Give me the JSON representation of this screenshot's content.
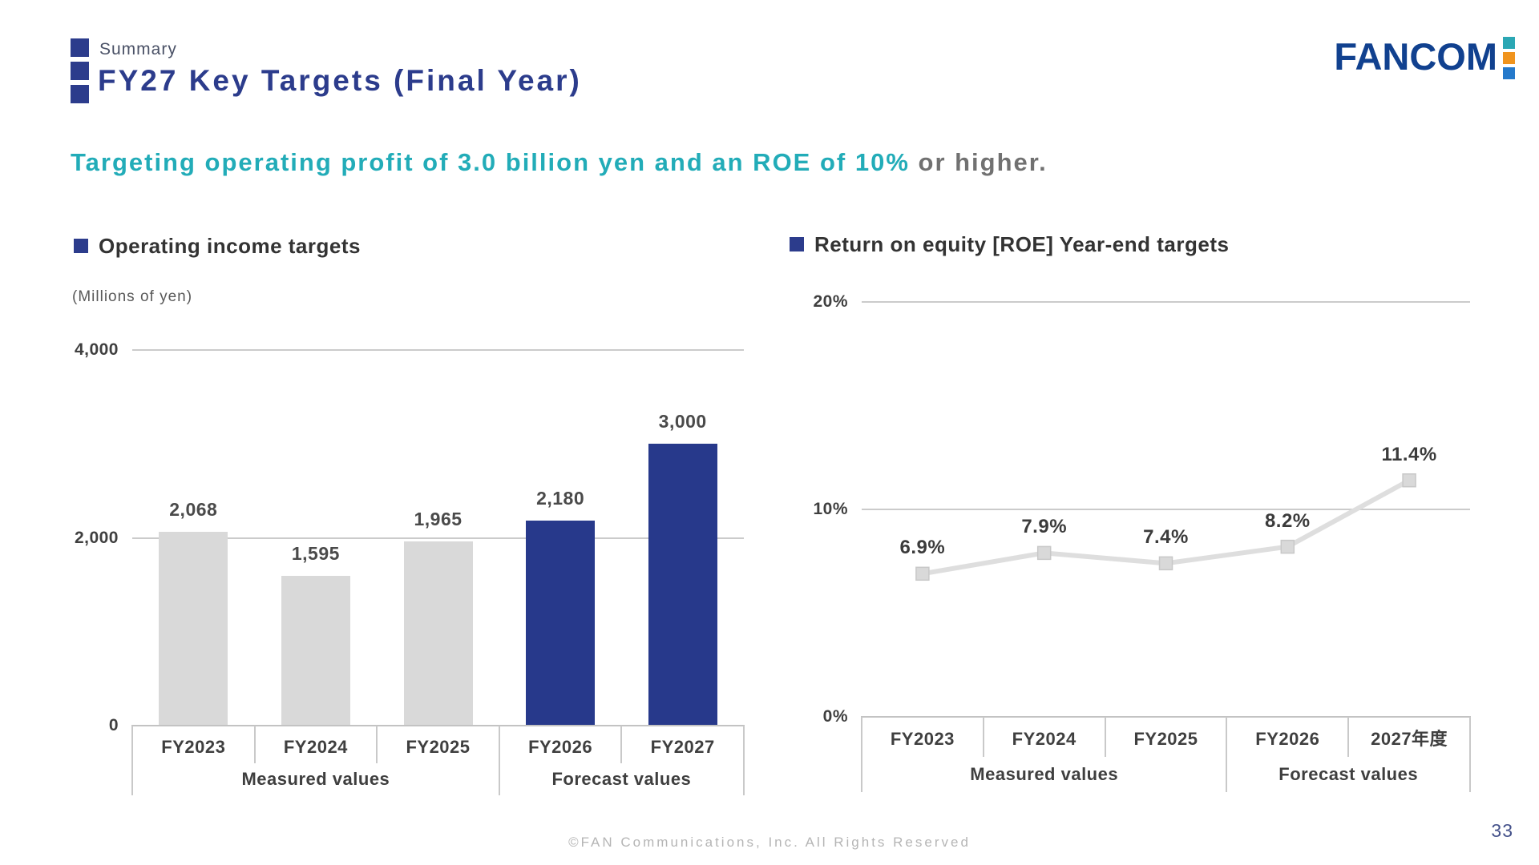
{
  "header": {
    "eyebrow": "Summary",
    "title": "FY27 Key Targets (Final Year)",
    "logo_text": "FANCOM"
  },
  "lead": {
    "highlight": "Targeting operating profit of 3.0 billion yen and an ROE of 10%",
    "suffix": " or higher."
  },
  "footer": {
    "copyright": "©FAN Communications, Inc. All Rights Reserved",
    "page_number": "33"
  },
  "colors": {
    "navy": "#27398b",
    "title_navy": "#2c3c8c",
    "teal": "#22acb8",
    "bar_gray": "#d9d9d9",
    "line_gray": "#dedede",
    "marker_fill": "#d9d9d9",
    "marker_border": "#c8c8c8",
    "grid": "#cbcbcb",
    "axis": "#c3c3c3",
    "text_dark": "#3f3f3f",
    "text_gray": "#595959",
    "footer_gray": "#b5b5b5",
    "logo_blue": "#11418f",
    "logo_sq_teal": "#2ba7b4",
    "logo_sq_orange": "#f0941e",
    "logo_sq_sky": "#2579cb"
  },
  "chart_data": [
    {
      "type": "bar",
      "title": "Operating income targets",
      "unit_label": "(Millions of yen)",
      "categories": [
        "FY2023",
        "FY2024",
        "FY2025",
        "FY2026",
        "FY2027"
      ],
      "values": [
        2068,
        1595,
        1965,
        2180,
        3000
      ],
      "value_labels": [
        "2,068",
        "1,595",
        "1,965",
        "2,180",
        "3,000"
      ],
      "bar_colors": [
        "#d9d9d9",
        "#d9d9d9",
        "#d9d9d9",
        "#27398b",
        "#27398b"
      ],
      "ylim": [
        0,
        4000
      ],
      "yticks": [
        {
          "value": 4000,
          "label": "4,000"
        },
        {
          "value": 2000,
          "label": "2,000"
        },
        {
          "value": 0,
          "label": "0"
        }
      ],
      "groups": [
        {
          "label": "Measured values",
          "span": 3
        },
        {
          "label": "Forecast values",
          "span": 2
        }
      ],
      "grid": "horizontal",
      "legend": "none"
    },
    {
      "type": "line",
      "title": "Return on equity [ROE] Year-end targets",
      "categories": [
        "FY2023",
        "FY2024",
        "FY2025",
        "FY2026",
        "2027年度"
      ],
      "values": [
        6.9,
        7.9,
        7.4,
        8.2,
        11.4
      ],
      "value_labels": [
        "6.9%",
        "7.9%",
        "7.4%",
        "8.2%",
        "11.4%"
      ],
      "ylim": [
        0,
        20
      ],
      "yticks": [
        {
          "value": 20,
          "label": "20%"
        },
        {
          "value": 10,
          "label": "10%"
        },
        {
          "value": 0,
          "label": "0%"
        }
      ],
      "groups": [
        {
          "label": "Measured values",
          "span": 3
        },
        {
          "label": "Forecast values",
          "span": 2
        }
      ],
      "marker": "square",
      "grid": "horizontal",
      "legend": "none"
    }
  ]
}
